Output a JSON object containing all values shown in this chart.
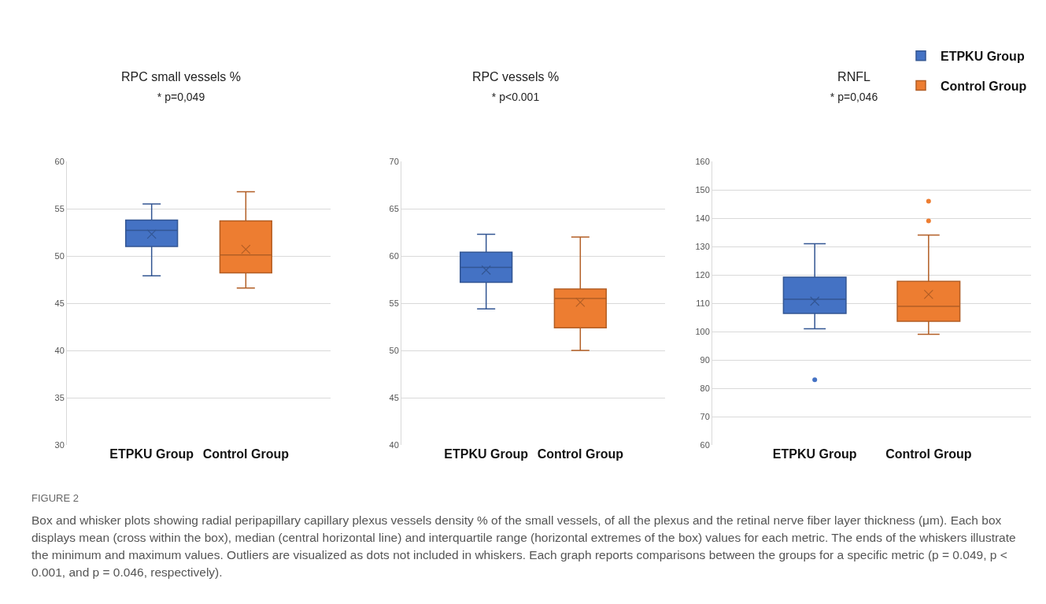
{
  "chart_data": [
    {
      "type": "box",
      "title": "RPC small vessels %",
      "subtitle": "* p=0,049",
      "categories": [
        "ETPKU Group",
        "Control Group"
      ],
      "ylim": [
        30,
        60
      ],
      "yticks": [
        30,
        35,
        40,
        45,
        50,
        55,
        60
      ],
      "grid": "y",
      "legend": false,
      "series": [
        {
          "color": "#4472c4",
          "boxes": [
            {
              "low": 47.9,
              "q1": 51.0,
              "median": 52.7,
              "q3": 53.8,
              "high": 55.5,
              "mean": 52.3
            },
            null
          ]
        },
        {
          "color": "#ed7d31",
          "boxes": [
            null,
            {
              "low": 46.6,
              "q1": 48.2,
              "median": 50.1,
              "q3": 53.7,
              "high": 56.8,
              "mean": 50.7
            }
          ]
        }
      ],
      "annotations": [
        "FIGURE 2",
        "Box and whisker plots showing radial peripapillary capillary plexus vessels density % of the small vessels, of all the plexus and the retinal nerve fiber layer thickness (μm). Each box displays mean (cross within the box), median (central horizontal line) and interquartile range (horizontal extremes of the box) values for each metric. The ends of the whiskers illustrate the minimum and maximum values. Outliers are visualized as dots not included in whiskers. Each graph reports comparisons between the groups for a specific metric (p = 0.049, p < 0.001, and p = 0.046, respectively)."
      ]
    },
    {
      "type": "box",
      "title": "RPC vessels %",
      "subtitle": "* p<0.001",
      "categories": [
        "ETPKU Group",
        "Control Group"
      ],
      "ylim": [
        40,
        70
      ],
      "yticks": [
        40,
        45,
        50,
        55,
        60,
        65,
        70
      ],
      "grid": "y",
      "legend": false,
      "series": [
        {
          "color": "#4472c4",
          "boxes": [
            {
              "low": 54.4,
              "q1": 57.2,
              "median": 58.8,
              "q3": 60.4,
              "high": 62.3,
              "mean": 58.5
            },
            null
          ]
        },
        {
          "color": "#ed7d31",
          "boxes": [
            null,
            {
              "low": 50.0,
              "q1": 52.4,
              "median": 55.5,
              "q3": 56.5,
              "high": 62.0,
              "mean": 55.1
            }
          ]
        }
      ]
    },
    {
      "type": "box",
      "title": "RNFL",
      "subtitle": "* p=0,046",
      "categories": [
        "ETPKU Group",
        "Control Group"
      ],
      "ylim": [
        60,
        160
      ],
      "yticks": [
        60,
        70,
        80,
        90,
        100,
        110,
        120,
        130,
        140,
        150,
        160
      ],
      "grid": "y",
      "legend": "top right",
      "series": [
        {
          "name": "ETPKU Group",
          "color": "#4472c4",
          "boxes": [
            {
              "low": 101,
              "q1": 106.4,
              "median": 111.4,
              "q3": 119.2,
              "high": 131,
              "mean": 110.7,
              "outliers": [
                83
              ]
            },
            null
          ]
        },
        {
          "name": "Control Group",
          "color": "#ed7d31",
          "boxes": [
            null,
            {
              "low": 99,
              "q1": 103.6,
              "median": 108.9,
              "q3": 117.7,
              "high": 134,
              "mean": 113.1,
              "outliers": [
                139,
                146
              ]
            }
          ]
        }
      ]
    }
  ]
}
